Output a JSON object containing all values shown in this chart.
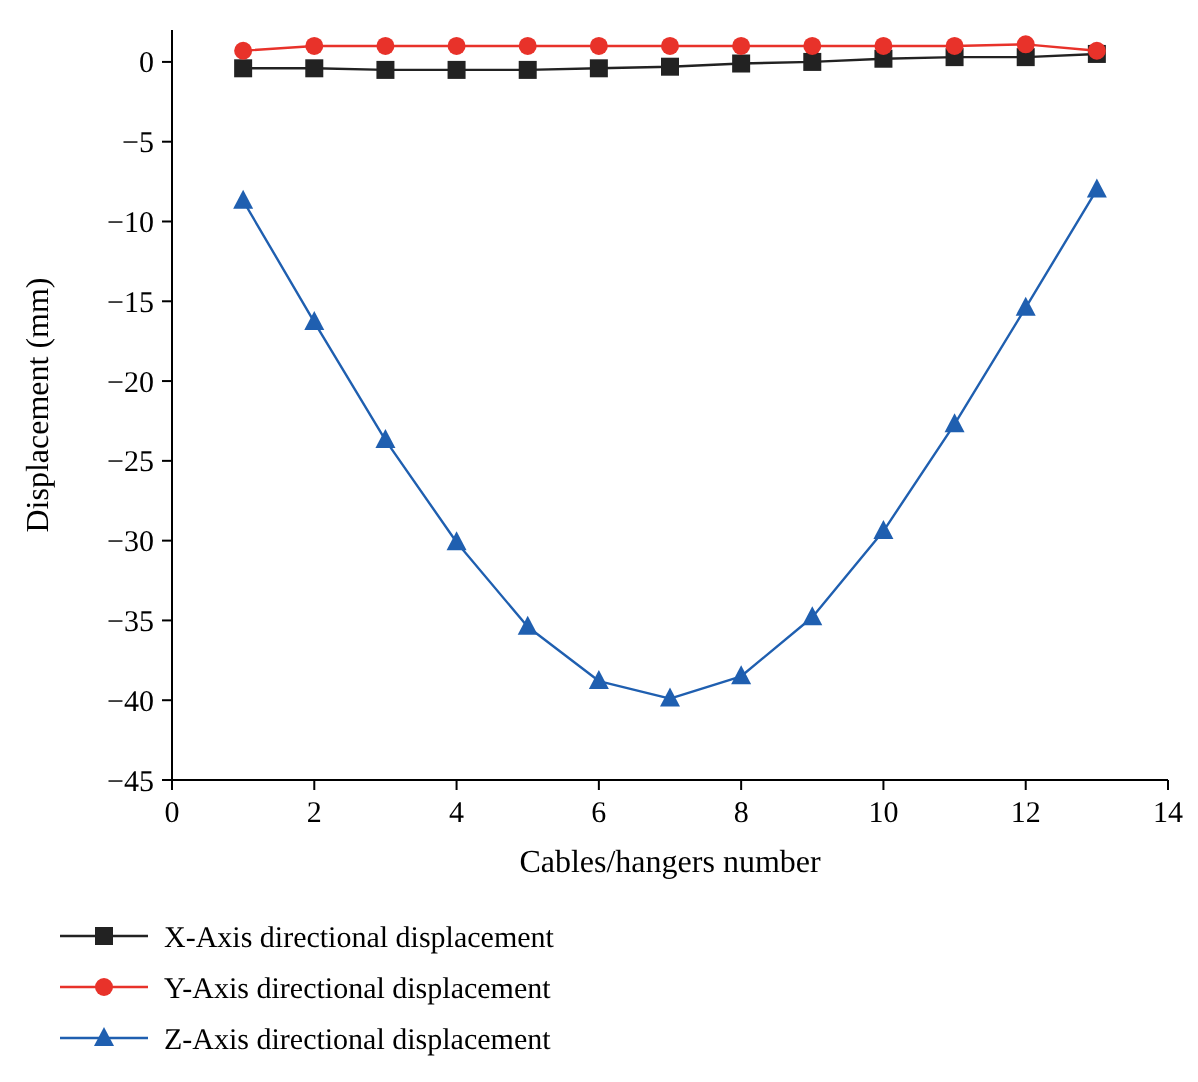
{
  "chart_data": {
    "type": "line",
    "xlabel": "Cables/hangers number",
    "ylabel": "Displacement (mm)",
    "x": [
      1,
      2,
      3,
      4,
      5,
      6,
      7,
      8,
      9,
      10,
      11,
      12,
      13
    ],
    "xlim": [
      0,
      14
    ],
    "xticks": [
      0,
      2,
      4,
      6,
      8,
      10,
      12,
      14
    ],
    "ylim": [
      -45,
      2
    ],
    "yticks": [
      -45,
      -40,
      -35,
      -30,
      -25,
      -20,
      -15,
      -10,
      -5,
      0
    ],
    "legend": "bottom",
    "grid": false,
    "line_style": "solid",
    "series": [
      {
        "name": "X-Axis directional displacement",
        "color": "#222222",
        "marker": "square",
        "values": [
          -0.4,
          -0.4,
          -0.5,
          -0.5,
          -0.5,
          -0.4,
          -0.3,
          -0.1,
          0,
          0.2,
          0.3,
          0.3,
          0.5
        ]
      },
      {
        "name": "Y-Axis directional displacement",
        "color": "#e8322a",
        "marker": "circle",
        "values": [
          0.7,
          1.0,
          1.0,
          1.0,
          1.0,
          1.0,
          1.0,
          1.0,
          1.0,
          1.0,
          1.0,
          1.1,
          0.7
        ]
      },
      {
        "name": "Z-Axis directional displacement",
        "color": "#1f5fb0",
        "marker": "triangle",
        "values": [
          -8.7,
          -16.3,
          -23.7,
          -30.1,
          -35.4,
          -38.8,
          -39.9,
          -38.5,
          -34.8,
          -29.4,
          -22.7,
          -15.4,
          -8.0
        ]
      }
    ]
  }
}
